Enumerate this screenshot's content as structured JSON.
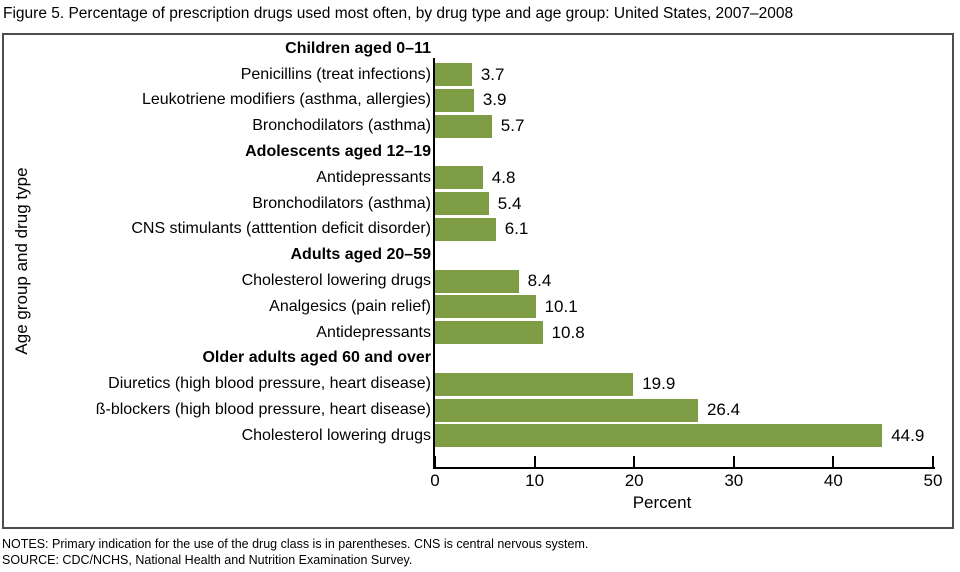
{
  "title": "Figure 5. Percentage of prescription drugs used most often, by drug type and age group: United States, 2007–2008",
  "colors": {
    "bar": "#7d9c44",
    "box_border": "#4d4d4d",
    "axis": "#000000"
  },
  "chart_data": {
    "type": "bar",
    "orientation": "horizontal",
    "title": "Figure 5. Percentage of prescription drugs used most often, by drug type and age group: United States, 2007–2008",
    "xlabel": "Percent",
    "ylabel": "Age group and drug type",
    "xlim": [
      0,
      50
    ],
    "xticks": [
      0,
      10,
      20,
      30,
      40,
      50
    ],
    "grid": false,
    "legend": "none",
    "groups": [
      {
        "header": "Children aged 0–11",
        "items": [
          {
            "label": "Penicillins (treat infections)",
            "value": 3.7
          },
          {
            "label": "Leukotriene modifiers (asthma, allergies)",
            "value": 3.9
          },
          {
            "label": "Bronchodilators (asthma)",
            "value": 5.7
          }
        ]
      },
      {
        "header": "Adolescents aged 12–19",
        "items": [
          {
            "label": "Antidepressants",
            "value": 4.8
          },
          {
            "label": "Bronchodilators (asthma)",
            "value": 5.4
          },
          {
            "label": "CNS stimulants (atttention deficit disorder)",
            "value": 6.1
          }
        ]
      },
      {
        "header": "Adults aged 20–59",
        "items": [
          {
            "label": "Cholesterol lowering drugs",
            "value": 8.4
          },
          {
            "label": "Analgesics (pain relief)",
            "value": 10.1
          },
          {
            "label": "Antidepressants",
            "value": 10.8
          }
        ]
      },
      {
        "header": "Older adults aged 60 and over",
        "items": [
          {
            "label": "Diuretics (high blood pressure, heart disease)",
            "value": 19.9
          },
          {
            "label": "ß-blockers (high blood pressure, heart disease)",
            "value": 26.4
          },
          {
            "label": "Cholesterol lowering drugs",
            "value": 44.9
          }
        ]
      }
    ]
  },
  "notes": "NOTES: Primary indication for the use of the drug class is in parentheses. CNS is central nervous system.",
  "source": "SOURCE: CDC/NCHS, National Health and Nutrition Examination Survey."
}
